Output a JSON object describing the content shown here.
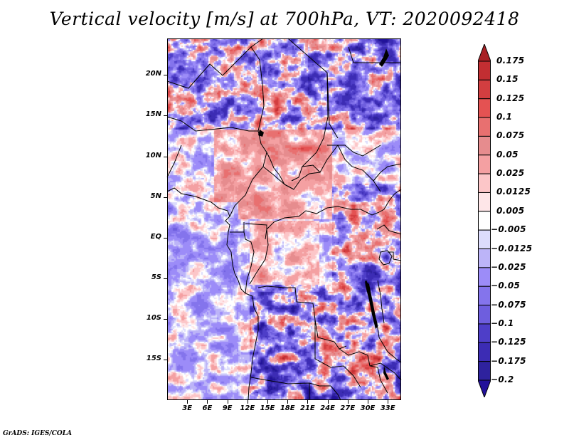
{
  "title": "Vertical velocity [m/s] at 700hPa, VT: 2020092418",
  "footer": "GrADS: IGES/COLA",
  "map": {
    "variable": "Vertical velocity",
    "units": "m/s",
    "level": "700hPa",
    "valid_time": "2020092418",
    "lon_range": [
      0,
      35
    ],
    "lat_range": [
      -20,
      24.5
    ],
    "lat_ticks": [
      "20N",
      "15N",
      "10N",
      "5N",
      "EQ",
      "5S",
      "10S",
      "15S"
    ],
    "lat_values": [
      20,
      15,
      10,
      5,
      0,
      -5,
      -10,
      -15
    ],
    "lon_ticks": [
      "3E",
      "6E",
      "9E",
      "12E",
      "15E",
      "18E",
      "21E",
      "24E",
      "27E",
      "30E",
      "33E"
    ],
    "lon_values": [
      3,
      6,
      9,
      12,
      15,
      18,
      21,
      24,
      27,
      30,
      33
    ]
  },
  "colorbar": {
    "labels": [
      "0.175",
      "0.15",
      "0.125",
      "0.1",
      "0.075",
      "0.05",
      "0.025",
      "0.0125",
      "0.005",
      "−0.005",
      "−0.0125",
      "−0.025",
      "−0.05",
      "−0.075",
      "−0.1",
      "−0.125",
      "−0.175",
      "−0.2"
    ],
    "colors": [
      "#b02428",
      "#c22e32",
      "#d23e40",
      "#e45252",
      "#e87070",
      "#e68c8e",
      "#f4a0a2",
      "#fcc6c8",
      "#fee6e8",
      "#ffffff",
      "#dcdcfc",
      "#bcb4f8",
      "#9c8cf8",
      "#8474ec",
      "#6e5ede",
      "#4e3ec8",
      "#3c2cb4",
      "#2e229e",
      "#22129a"
    ],
    "top_arrow_color": "#a82024",
    "bottom_arrow_color": "#22109a"
  }
}
